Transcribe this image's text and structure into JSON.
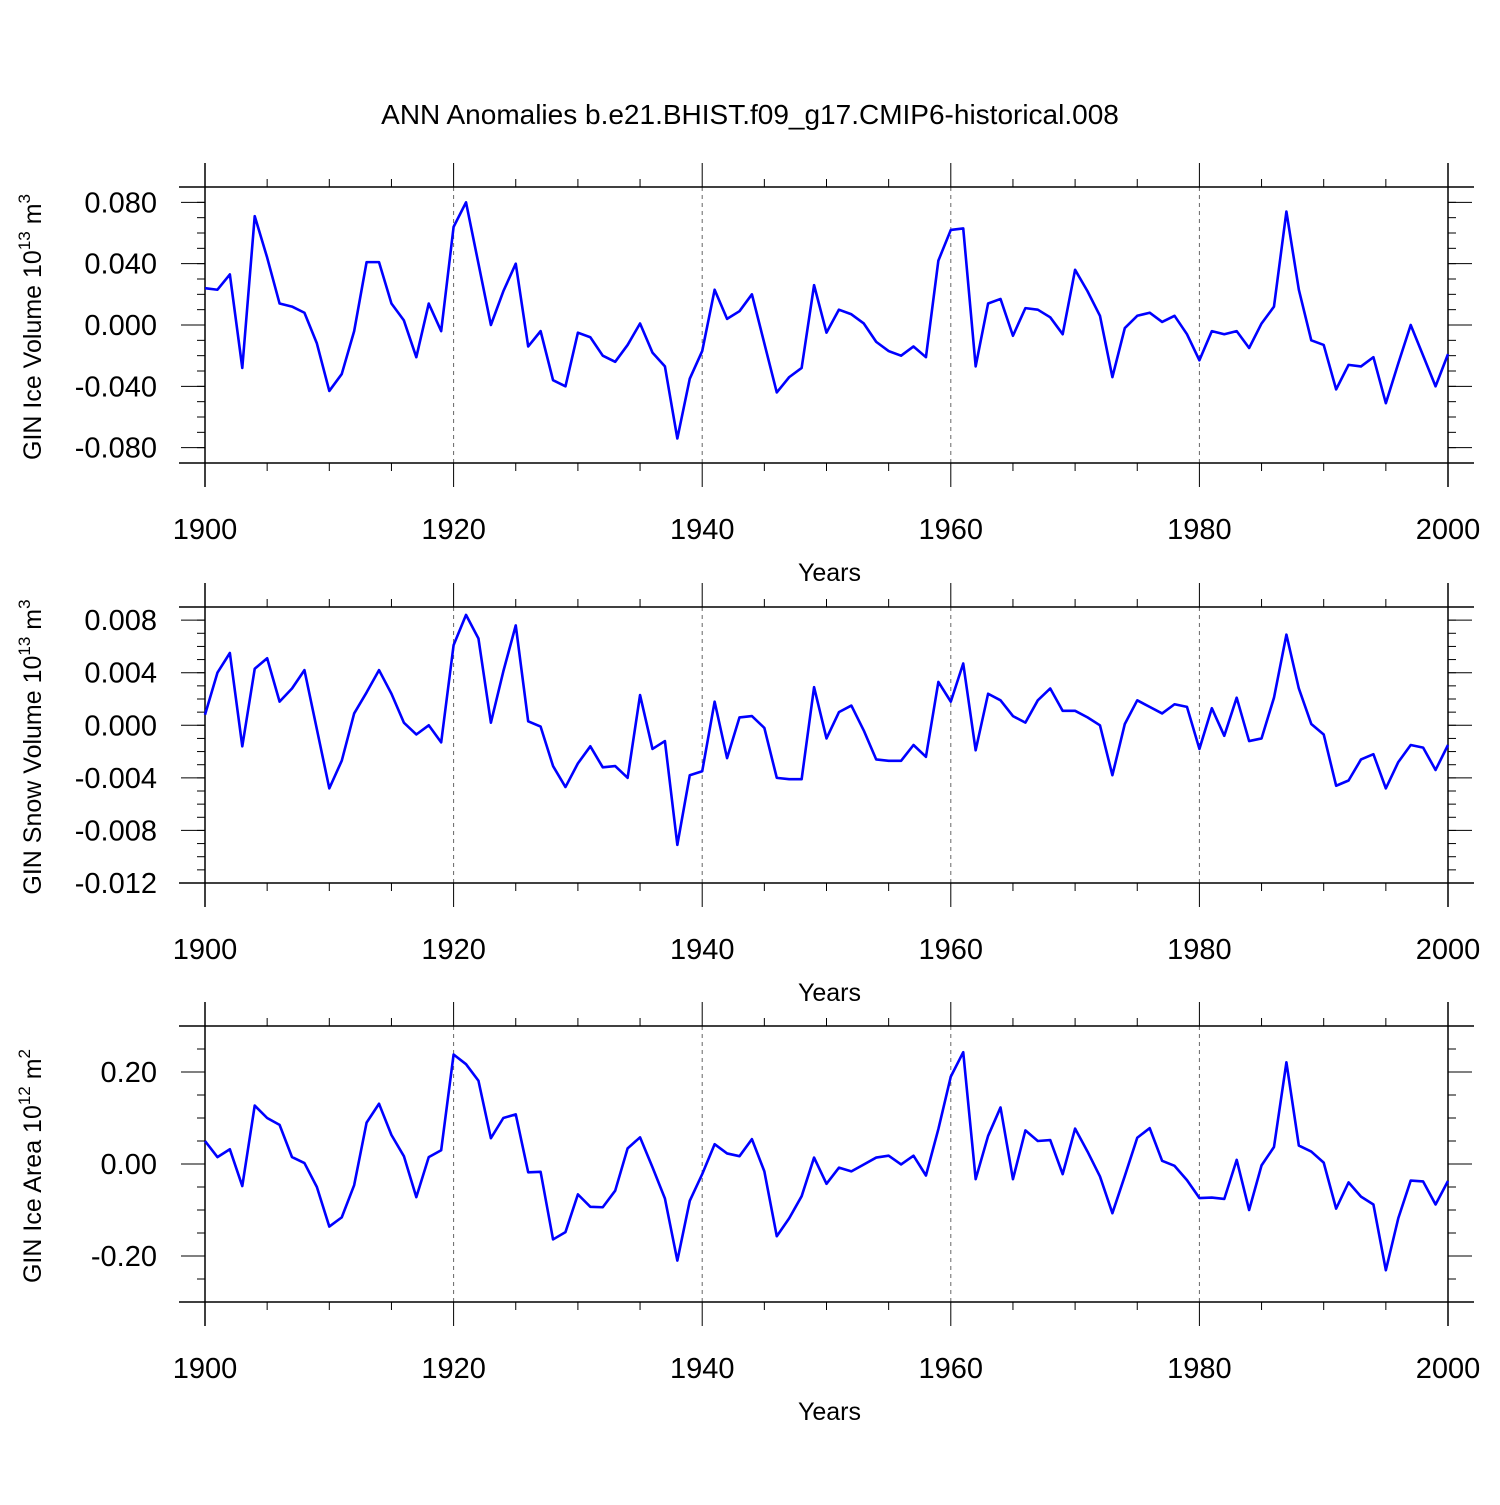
{
  "title": "ANN Anomalies b.e21.BHIST.f09_g17.CMIP6-historical.008",
  "colors": {
    "line": "#0000ff",
    "axis": "#000000",
    "grid": "#666666"
  },
  "chart_data": [
    {
      "type": "line",
      "ylabel": {
        "base": "GIN Ice Volume 10",
        "exp": "13",
        "unit": " m",
        "unit_exp": "3"
      },
      "xlabel": "Years",
      "xlim": [
        1900,
        2000
      ],
      "ylim": [
        -0.09,
        0.09
      ],
      "xticks": [
        1900,
        1920,
        1940,
        1960,
        1980,
        2000
      ],
      "xtick_labels": [
        "1900",
        "1920",
        "1940",
        "1960",
        "1980",
        "2000"
      ],
      "yticks": [
        -0.08,
        -0.04,
        0.0,
        0.04,
        0.08
      ],
      "ytick_labels": [
        "-0.080",
        "-0.040",
        "0.000",
        "0.040",
        "0.080"
      ],
      "yminor_step": 0.01,
      "grid_x": [
        1920,
        1940,
        1960,
        1980
      ],
      "series": [
        {
          "name": "GIN Ice Volume",
          "x_start": 1900,
          "values": [
            0.024,
            0.023,
            0.033,
            -0.028,
            0.071,
            0.044,
            0.014,
            0.012,
            0.008,
            -0.012,
            -0.043,
            -0.032,
            -0.004,
            0.041,
            0.041,
            0.014,
            0.003,
            -0.021,
            0.014,
            -0.004,
            0.064,
            0.08,
            0.04,
            0.0,
            0.022,
            0.04,
            -0.014,
            -0.004,
            -0.036,
            -0.04,
            -0.005,
            -0.008,
            -0.02,
            -0.024,
            -0.013,
            0.001,
            -0.018,
            -0.027,
            -0.074,
            -0.035,
            -0.017,
            0.023,
            0.004,
            0.009,
            0.02,
            -0.012,
            -0.044,
            -0.034,
            -0.028,
            0.026,
            -0.005,
            0.01,
            0.007,
            0.001,
            -0.011,
            -0.017,
            -0.02,
            -0.014,
            -0.021,
            0.042,
            0.062,
            0.063,
            -0.027,
            0.014,
            0.017,
            -0.007,
            0.011,
            0.01,
            0.005,
            -0.006,
            0.036,
            0.022,
            0.006,
            -0.034,
            -0.002,
            0.006,
            0.008,
            0.002,
            0.006,
            -0.006,
            -0.023,
            -0.004,
            -0.006,
            -0.004,
            -0.015,
            0.001,
            0.012,
            0.074,
            0.023,
            -0.01,
            -0.013,
            -0.042,
            -0.026,
            -0.027,
            -0.021,
            -0.051,
            -0.025,
            0.0,
            -0.02,
            -0.04,
            -0.019
          ]
        }
      ]
    },
    {
      "type": "line",
      "ylabel": {
        "base": "GIN Snow Volume 10",
        "exp": "13",
        "unit": " m",
        "unit_exp": "3"
      },
      "xlabel": "Years",
      "xlim": [
        1900,
        2000
      ],
      "ylim": [
        -0.012,
        0.009
      ],
      "xticks": [
        1900,
        1920,
        1940,
        1960,
        1980,
        2000
      ],
      "xtick_labels": [
        "1900",
        "1920",
        "1940",
        "1960",
        "1980",
        "2000"
      ],
      "yticks": [
        -0.012,
        -0.008,
        -0.004,
        0.0,
        0.004,
        0.008
      ],
      "ytick_labels": [
        "-0.012",
        "-0.008",
        "-0.004",
        "0.000",
        "0.004",
        "0.008"
      ],
      "yminor_step": 0.001,
      "grid_x": [
        1920,
        1940,
        1960,
        1980
      ],
      "series": [
        {
          "name": "GIN Snow Volume",
          "x_start": 1900,
          "values": [
            0.0008,
            0.004,
            0.0055,
            -0.0016,
            0.0043,
            0.0051,
            0.0018,
            0.0028,
            0.0042,
            -0.0003,
            -0.0048,
            -0.0027,
            0.0009,
            0.0025,
            0.0042,
            0.0024,
            0.0002,
            -0.0007,
            0.0,
            -0.0013,
            0.0061,
            0.0084,
            0.0066,
            0.0002,
            0.0041,
            0.0076,
            0.0003,
            -0.0001,
            -0.0031,
            -0.0047,
            -0.0029,
            -0.0016,
            -0.0032,
            -0.0031,
            -0.004,
            0.0023,
            -0.0018,
            -0.0012,
            -0.0091,
            -0.0038,
            -0.0035,
            0.0018,
            -0.0025,
            0.0006,
            0.0007,
            -0.0002,
            -0.004,
            -0.0041,
            -0.0041,
            0.0029,
            -0.001,
            0.001,
            0.0015,
            -0.0004,
            -0.0026,
            -0.0027,
            -0.0027,
            -0.0015,
            -0.0024,
            0.0033,
            0.0018,
            0.0047,
            -0.0019,
            0.0024,
            0.0019,
            0.0007,
            0.0002,
            0.0019,
            0.0028,
            0.0011,
            0.0011,
            0.0006,
            0.0,
            -0.0038,
            0.0001,
            0.0019,
            0.0014,
            0.0009,
            0.0016,
            0.0014,
            -0.0018,
            0.0013,
            -0.0008,
            0.0021,
            -0.0012,
            -0.001,
            0.0021,
            0.0069,
            0.0028,
            0.0001,
            -0.0007,
            -0.0046,
            -0.0042,
            -0.0026,
            -0.0022,
            -0.0048,
            -0.0028,
            -0.0015,
            -0.0017,
            -0.0034,
            -0.0015
          ]
        }
      ]
    },
    {
      "type": "line",
      "ylabel": {
        "base": "GIN Ice Area 10",
        "exp": "12",
        "unit": " m",
        "unit_exp": "2"
      },
      "xlabel": "Years",
      "xlim": [
        1900,
        2000
      ],
      "ylim": [
        -0.3,
        0.3
      ],
      "xticks": [
        1900,
        1920,
        1940,
        1960,
        1980,
        2000
      ],
      "xtick_labels": [
        "1900",
        "1920",
        "1940",
        "1960",
        "1980",
        "2000"
      ],
      "yticks": [
        -0.2,
        0.0,
        0.2
      ],
      "ytick_labels": [
        "-0.20",
        "0.00",
        "0.20"
      ],
      "yminor_step": 0.05,
      "grid_x": [
        1920,
        1940,
        1960,
        1980
      ],
      "series": [
        {
          "name": "GIN Ice Area",
          "x_start": 1900,
          "values": [
            0.05,
            0.015,
            0.032,
            -0.048,
            0.127,
            0.1,
            0.085,
            0.015,
            0.002,
            -0.05,
            -0.136,
            -0.116,
            -0.046,
            0.09,
            0.131,
            0.063,
            0.017,
            -0.072,
            0.015,
            0.03,
            0.238,
            0.217,
            0.181,
            0.056,
            0.1,
            0.108,
            -0.018,
            -0.017,
            -0.164,
            -0.148,
            -0.066,
            -0.093,
            -0.094,
            -0.058,
            0.034,
            0.058,
            -0.007,
            -0.075,
            -0.21,
            -0.08,
            -0.022,
            0.043,
            0.023,
            0.017,
            0.054,
            -0.016,
            -0.157,
            -0.118,
            -0.07,
            0.014,
            -0.043,
            -0.008,
            -0.016,
            -0.001,
            0.014,
            0.018,
            -0.001,
            0.018,
            -0.025,
            0.076,
            0.19,
            0.243,
            -0.033,
            0.061,
            0.123,
            -0.033,
            0.073,
            0.05,
            0.052,
            -0.022,
            0.077,
            0.027,
            -0.027,
            -0.107,
            -0.026,
            0.057,
            0.078,
            0.007,
            -0.004,
            -0.035,
            -0.074,
            -0.073,
            -0.076,
            0.009,
            -0.1,
            -0.003,
            0.037,
            0.221,
            0.04,
            0.027,
            0.003,
            -0.097,
            -0.04,
            -0.071,
            -0.088,
            -0.231,
            -0.118,
            -0.036,
            -0.038,
            -0.088,
            -0.037
          ]
        }
      ]
    }
  ]
}
